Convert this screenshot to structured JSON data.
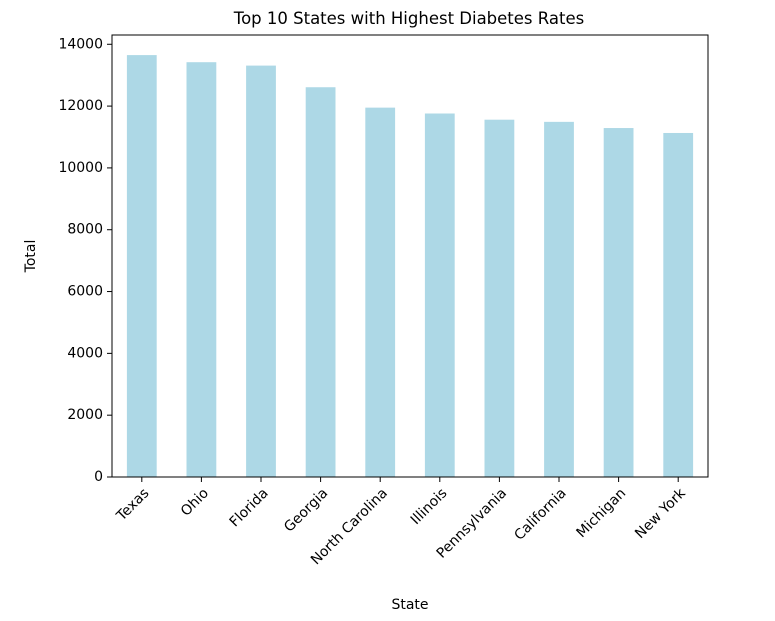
{
  "chart_data": {
    "type": "bar",
    "title": "Top 10 States with Highest Diabetes Rates",
    "xlabel": "State",
    "ylabel": "Total",
    "categories": [
      "Texas",
      "Ohio",
      "Florida",
      "Georgia",
      "North Carolina",
      "Illinois",
      "Pennsylvania",
      "California",
      "Michigan",
      "New York"
    ],
    "values": [
      13650,
      13420,
      13310,
      12610,
      11950,
      11760,
      11560,
      11490,
      11290,
      11130
    ],
    "ylim": [
      0,
      14300
    ],
    "yticks": [
      0,
      2000,
      4000,
      6000,
      8000,
      10000,
      12000,
      14000
    ],
    "ytick_labels": [
      "0",
      "2000",
      "4000",
      "6000",
      "8000",
      "10000",
      "12000",
      "14000"
    ],
    "grid": false,
    "legend": "none",
    "bar_color": "#add8e6"
  }
}
